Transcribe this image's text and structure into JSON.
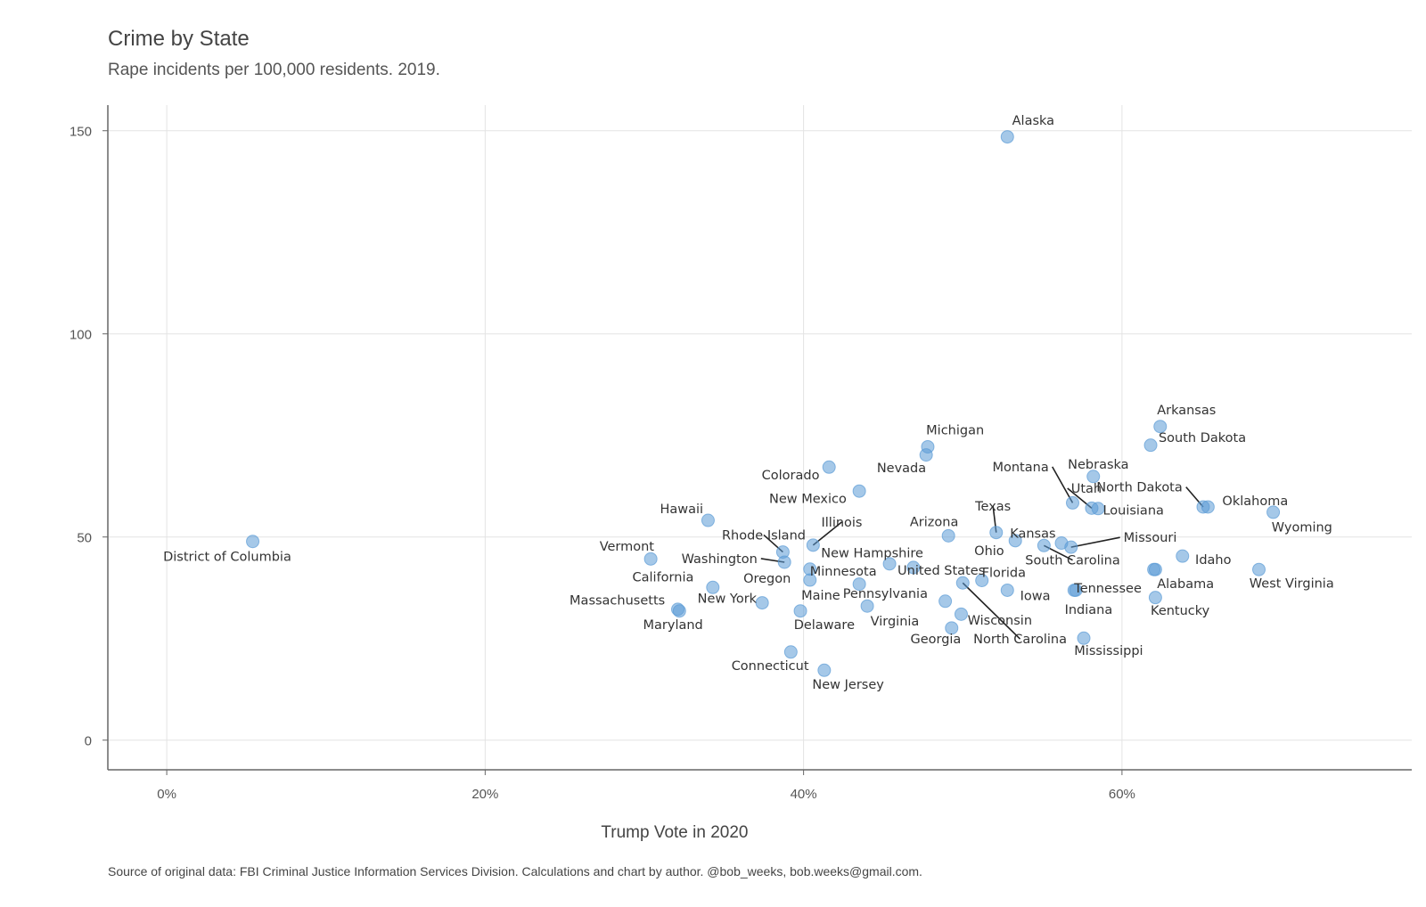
{
  "colors": {
    "point": "#5b9bd5",
    "grid": "#e3e3e3",
    "axis": "#666666",
    "leader": "#222222"
  },
  "chart_data": {
    "type": "scatter",
    "title": "Crime by State",
    "subtitle": "Rape incidents per 100,000 residents. 2019.",
    "caption": "Source of original data: FBI Criminal Justice Information Services Division. Calculations and chart by author. @bob_weeks, bob.weeks@gmail.com.",
    "xlabel": "Trump Vote in 2020",
    "ylabel": "",
    "xlim": [
      -3.7,
      78.2
    ],
    "ylim": [
      -7.3,
      156.3
    ],
    "x_ticks": [
      0,
      20,
      40,
      60
    ],
    "x_tick_labels": [
      "0%",
      "20%",
      "40%",
      "60%"
    ],
    "y_ticks": [
      0,
      50,
      100,
      150
    ],
    "y_tick_labels": [
      "0",
      "50",
      "100",
      "150"
    ],
    "grid": true,
    "legend": "none",
    "points": [
      {
        "label": "Alaska",
        "x": 52.8,
        "y": 148.5,
        "lx": 53.1,
        "ly": 151.5,
        "anchor": "start"
      },
      {
        "label": "Arkansas",
        "x": 62.4,
        "y": 77.2,
        "lx": 62.2,
        "ly": 80.2,
        "anchor": "start"
      },
      {
        "label": "South Dakota",
        "x": 61.8,
        "y": 72.6,
        "lx": 62.3,
        "ly": 73.4,
        "anchor": "start"
      },
      {
        "label": "Michigan",
        "x": 47.8,
        "y": 72.2,
        "lx": 47.7,
        "ly": 75.3,
        "anchor": "start"
      },
      {
        "label": "Nevada",
        "x": 47.7,
        "y": 70.2,
        "lx": 47.7,
        "ly": 65.9,
        "anchor": "end"
      },
      {
        "label": "Colorado",
        "x": 41.6,
        "y": 67.2,
        "lx": 41.0,
        "ly": 64.2,
        "anchor": "end"
      },
      {
        "label": "Nebraska",
        "x": 58.2,
        "y": 64.9,
        "lx": 56.6,
        "ly": 66.8,
        "anchor": "start"
      },
      {
        "label": "Montana",
        "x": 56.9,
        "y": 58.4,
        "lx": 55.4,
        "ly": 66.2,
        "anchor": "end",
        "leader": true
      },
      {
        "label": "New Mexico",
        "x": 43.5,
        "y": 61.3,
        "lx": 42.7,
        "ly": 58.4,
        "anchor": "end"
      },
      {
        "label": "Utah",
        "x": 58.1,
        "y": 57.1,
        "lx": 56.8,
        "ly": 60.9,
        "anchor": "start",
        "leader": true
      },
      {
        "label": "North Dakota",
        "x": 65.1,
        "y": 57.4,
        "lx": 63.8,
        "ly": 61.2,
        "anchor": "end",
        "leader": true
      },
      {
        "label": "Oklahoma",
        "x": 65.4,
        "y": 57.4,
        "lx": 66.3,
        "ly": 57.8,
        "anchor": "start"
      },
      {
        "label": "Louisiana",
        "x": 58.5,
        "y": 57.0,
        "lx": 58.8,
        "ly": 55.5,
        "anchor": "start"
      },
      {
        "label": "Wyoming",
        "x": 69.5,
        "y": 56.1,
        "lx": 69.4,
        "ly": 51.4,
        "anchor": "start"
      },
      {
        "label": "Hawaii",
        "x": 34.0,
        "y": 54.1,
        "lx": 33.7,
        "ly": 55.9,
        "anchor": "end"
      },
      {
        "label": "Texas",
        "x": 52.1,
        "y": 51.1,
        "lx": 51.9,
        "ly": 56.5,
        "anchor": "middle",
        "leader": true
      },
      {
        "label": "Arizona",
        "x": 49.1,
        "y": 50.3,
        "lx": 48.2,
        "ly": 52.7,
        "anchor": "middle"
      },
      {
        "label": "Illinois",
        "x": 40.6,
        "y": 48.0,
        "lx": 42.4,
        "ly": 52.6,
        "anchor": "middle",
        "leader": true
      },
      {
        "label": "Kansas",
        "x": 56.2,
        "y": 48.5,
        "lx": 54.4,
        "ly": 49.8,
        "anchor": "middle"
      },
      {
        "label": "Ohio",
        "x": 53.3,
        "y": 49.1,
        "lx": 52.6,
        "ly": 45.5,
        "anchor": "end"
      },
      {
        "label": "Missouri",
        "x": 56.8,
        "y": 47.5,
        "lx": 60.1,
        "ly": 48.8,
        "anchor": "start",
        "leader": true
      },
      {
        "label": "District of Columbia",
        "x": 5.4,
        "y": 48.9,
        "lx": 3.8,
        "ly": 44.1,
        "anchor": "middle"
      },
      {
        "label": "Rhode Island",
        "x": 38.7,
        "y": 46.3,
        "lx": 37.5,
        "ly": 49.4,
        "anchor": "middle",
        "leader": true
      },
      {
        "label": "New Hampshire",
        "x": 45.4,
        "y": 43.4,
        "lx": 41.1,
        "ly": 45.0,
        "anchor": "start"
      },
      {
        "label": "Idaho",
        "x": 63.8,
        "y": 45.3,
        "lx": 64.6,
        "ly": 43.4,
        "anchor": "start"
      },
      {
        "label": "Vermont",
        "x": 30.4,
        "y": 44.6,
        "lx": 28.9,
        "ly": 46.7,
        "anchor": "middle"
      },
      {
        "label": "Washington",
        "x": 38.8,
        "y": 43.8,
        "lx": 37.1,
        "ly": 43.6,
        "anchor": "end",
        "leader": true
      },
      {
        "label": "South Carolina",
        "x": 55.1,
        "y": 47.9,
        "lx": 56.9,
        "ly": 43.2,
        "anchor": "middle",
        "leader": true
      },
      {
        "label": "United States",
        "x": 46.9,
        "y": 42.5,
        "lx": 45.9,
        "ly": 40.7,
        "anchor": "start"
      },
      {
        "label": "Minnesota",
        "x": 40.4,
        "y": 42.1,
        "lx": 40.4,
        "ly": 40.5,
        "anchor": "start"
      },
      {
        "label": "West Virginia",
        "x": 68.6,
        "y": 42.0,
        "lx": 68.0,
        "ly": 37.5,
        "anchor": "start"
      },
      {
        "label": "South Carolina point",
        "x": 62.0,
        "y": 42.0,
        "hidden": true
      },
      {
        "label": "Florida",
        "x": 51.2,
        "y": 39.3,
        "lx": 51.2,
        "ly": 40.2,
        "anchor": "start"
      },
      {
        "label": "Oregon",
        "x": 40.4,
        "y": 39.4,
        "lx": 39.2,
        "ly": 38.8,
        "anchor": "end"
      },
      {
        "label": "Alabama",
        "x": 62.1,
        "y": 42.0,
        "lx": 62.2,
        "ly": 37.4,
        "anchor": "start"
      },
      {
        "label": "North Carolina",
        "x": 50.0,
        "y": 38.7,
        "lx": 53.6,
        "ly": 23.8,
        "anchor": "middle",
        "leader": true
      },
      {
        "label": "California",
        "x": 34.3,
        "y": 37.6,
        "lx": 33.1,
        "ly": 39.1,
        "anchor": "end"
      },
      {
        "label": "Tennessee",
        "x": 57.1,
        "y": 36.9,
        "lx": 57.0,
        "ly": 36.3,
        "anchor": "start"
      },
      {
        "label": "Iowa",
        "x": 52.8,
        "y": 36.9,
        "lx": 53.6,
        "ly": 34.5,
        "anchor": "start"
      },
      {
        "label": "Pennsylvania",
        "x": 48.9,
        "y": 34.2,
        "lx": 47.8,
        "ly": 35.0,
        "anchor": "end"
      },
      {
        "label": "Maine",
        "x": 43.5,
        "y": 38.4,
        "lx": 42.3,
        "ly": 34.6,
        "anchor": "end"
      },
      {
        "label": "Kentucky",
        "x": 62.1,
        "y": 35.1,
        "lx": 61.8,
        "ly": 30.9,
        "anchor": "start"
      },
      {
        "label": "New York",
        "x": 37.4,
        "y": 33.8,
        "lx": 35.2,
        "ly": 33.8,
        "anchor": "middle"
      },
      {
        "label": "Virginia",
        "x": 44.0,
        "y": 33.0,
        "lx": 44.2,
        "ly": 28.2,
        "anchor": "start"
      },
      {
        "label": "Indiana",
        "x": 57.0,
        "y": 36.9,
        "lx": 56.4,
        "ly": 31.1,
        "anchor": "start"
      },
      {
        "label": "Massachusetts",
        "x": 32.1,
        "y": 32.2,
        "lx": 31.3,
        "ly": 33.4,
        "anchor": "end"
      },
      {
        "label": "Maryland",
        "x": 32.2,
        "y": 31.8,
        "lx": 31.8,
        "ly": 27.3,
        "anchor": "middle"
      },
      {
        "label": "Delaware",
        "x": 39.8,
        "y": 31.8,
        "lx": 41.3,
        "ly": 27.4,
        "anchor": "middle"
      },
      {
        "label": "Wisconsin",
        "x": 49.9,
        "y": 31.0,
        "lx": 50.3,
        "ly": 28.5,
        "anchor": "start"
      },
      {
        "label": "Georgia",
        "x": 49.3,
        "y": 27.6,
        "lx": 48.3,
        "ly": 23.8,
        "anchor": "middle"
      },
      {
        "label": "Mississippi",
        "x": 57.6,
        "y": 25.1,
        "lx": 57.0,
        "ly": 21.0,
        "anchor": "start"
      },
      {
        "label": "Connecticut",
        "x": 39.2,
        "y": 21.7,
        "lx": 37.9,
        "ly": 17.3,
        "anchor": "middle"
      },
      {
        "label": "New Jersey",
        "x": 41.3,
        "y": 17.2,
        "lx": 42.8,
        "ly": 12.7,
        "anchor": "middle"
      }
    ]
  }
}
